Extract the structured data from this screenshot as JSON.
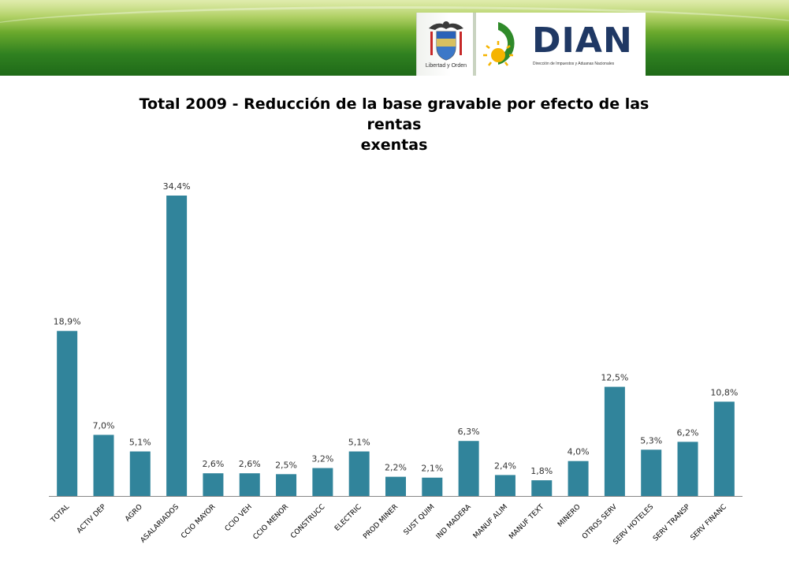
{
  "header": {
    "motto": "Libertad y Orden",
    "brand": "DIAN",
    "brand_subtitle": "Dirección de Impuestos y Aduanas Nacionales"
  },
  "colors": {
    "bar": "#31849b",
    "header_green": "#3a8c24",
    "brand_navy": "#1f3864",
    "sun": "#f5b400"
  },
  "icons": [
    "colombia-coat-of-arms-icon",
    "dian-sun-logo-icon"
  ],
  "chart_data": {
    "type": "bar",
    "title": "Total 2009 - Reducción de la base gravable por efecto de las rentas exentas",
    "title_lines": [
      "Total 2009 - Reducción de la base gravable por efecto de las rentas",
      "exentas"
    ],
    "categories": [
      "TOTAL",
      "ACTIV DEP",
      "AGRO",
      "ASALARIADOS",
      "CCIO MAYOR",
      "CCIO VEH",
      "CCIO MENOR",
      "CONSTRUCC",
      "ELECTRIC",
      "PROD MINER",
      "SUST QUIM",
      "IND MADERA",
      "MANUF ALIM",
      "MANUF TEXT",
      "MINERO",
      "OTROS SERV",
      "SERV HOTELES",
      "SERV TRANSP",
      "SERV FINANC"
    ],
    "values": [
      18.9,
      7.0,
      5.1,
      34.4,
      2.6,
      2.6,
      2.5,
      3.2,
      5.1,
      2.2,
      2.1,
      6.3,
      2.4,
      1.8,
      4.0,
      12.5,
      5.3,
      6.2,
      10.8
    ],
    "value_labels": [
      "18,9%",
      "7,0%",
      "5,1%",
      "34,4%",
      "2,6%",
      "2,6%",
      "2,5%",
      "3,2%",
      "5,1%",
      "2,2%",
      "2,1%",
      "6,3%",
      "2,4%",
      "1,8%",
      "4,0%",
      "12,5%",
      "5,3%",
      "6,2%",
      "10,8%"
    ],
    "xlabel": "",
    "ylabel": "",
    "ylim": [
      0,
      34.4
    ],
    "grid": false,
    "legend": "none",
    "y_axis_visible": false
  }
}
